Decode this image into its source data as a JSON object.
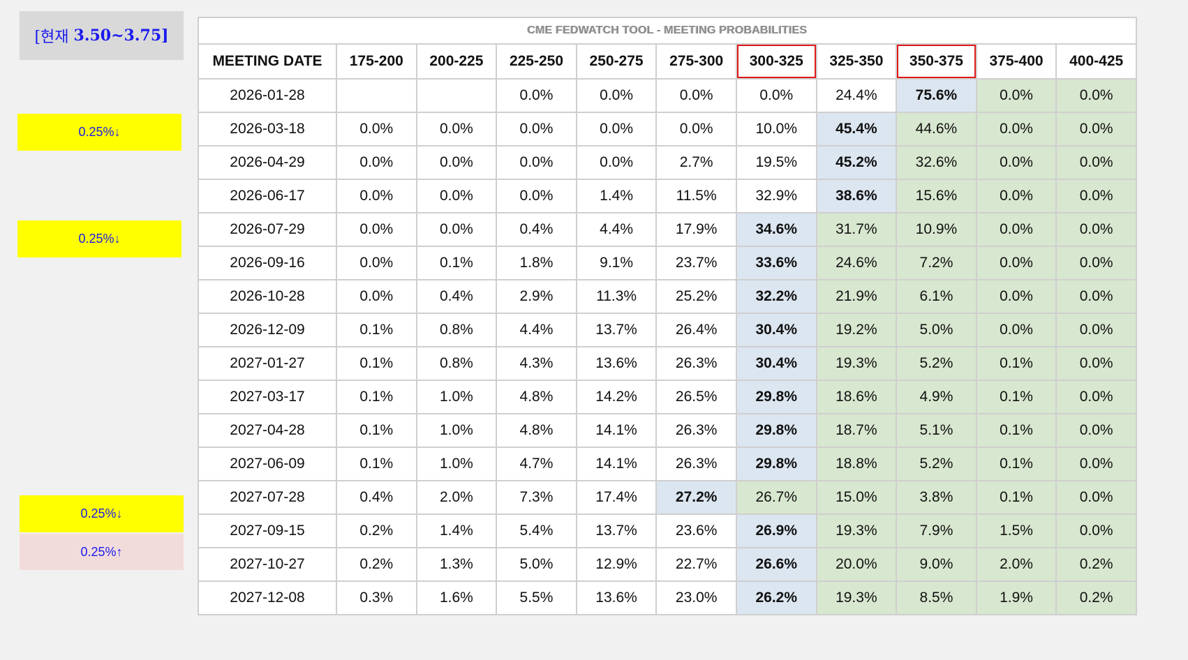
{
  "annotations": {
    "current_prefix": "[현재",
    "current_range": "3.50~3.75]",
    "labels": [
      "0.25%↓",
      "0.25%↓",
      "0.25%↓",
      "0.25%↑"
    ],
    "colors": {
      "highlight_yellow": "#ffff00",
      "highlight_pink": "#f2dcdb",
      "text_blue": "#1a1aee"
    }
  },
  "table": {
    "title": "CME FEDWATCH TOOL - MEETING PROBABILITIES",
    "headers": [
      "MEETING DATE",
      "175-200",
      "200-225",
      "225-250",
      "250-275",
      "275-300",
      "300-325",
      "325-350",
      "350-375",
      "375-400",
      "400-425"
    ],
    "boxed_headers": [
      "300-325",
      "350-375"
    ],
    "colors": {
      "max_cell_blue": "#dce6f1",
      "higher_green": "#d8e7cf",
      "box_red": "#e01818"
    },
    "rows": [
      {
        "date": "2026-01-28",
        "values": [
          "",
          "",
          "0.0%",
          "0.0%",
          "0.0%",
          "0.0%",
          "24.4%",
          "75.6%",
          "0.0%",
          "0.0%"
        ],
        "max_index": 7
      },
      {
        "date": "2026-03-18",
        "values": [
          "0.0%",
          "0.0%",
          "0.0%",
          "0.0%",
          "0.0%",
          "10.0%",
          "45.4%",
          "44.6%",
          "0.0%",
          "0.0%"
        ],
        "max_index": 6
      },
      {
        "date": "2026-04-29",
        "values": [
          "0.0%",
          "0.0%",
          "0.0%",
          "0.0%",
          "2.7%",
          "19.5%",
          "45.2%",
          "32.6%",
          "0.0%",
          "0.0%"
        ],
        "max_index": 6
      },
      {
        "date": "2026-06-17",
        "values": [
          "0.0%",
          "0.0%",
          "0.0%",
          "1.4%",
          "11.5%",
          "32.9%",
          "38.6%",
          "15.6%",
          "0.0%",
          "0.0%"
        ],
        "max_index": 6
      },
      {
        "date": "2026-07-29",
        "values": [
          "0.0%",
          "0.0%",
          "0.4%",
          "4.4%",
          "17.9%",
          "34.6%",
          "31.7%",
          "10.9%",
          "0.0%",
          "0.0%"
        ],
        "max_index": 5
      },
      {
        "date": "2026-09-16",
        "values": [
          "0.0%",
          "0.1%",
          "1.8%",
          "9.1%",
          "23.7%",
          "33.6%",
          "24.6%",
          "7.2%",
          "0.0%",
          "0.0%"
        ],
        "max_index": 5
      },
      {
        "date": "2026-10-28",
        "values": [
          "0.0%",
          "0.4%",
          "2.9%",
          "11.3%",
          "25.2%",
          "32.2%",
          "21.9%",
          "6.1%",
          "0.0%",
          "0.0%"
        ],
        "max_index": 5
      },
      {
        "date": "2026-12-09",
        "values": [
          "0.1%",
          "0.8%",
          "4.4%",
          "13.7%",
          "26.4%",
          "30.4%",
          "19.2%",
          "5.0%",
          "0.0%",
          "0.0%"
        ],
        "max_index": 5
      },
      {
        "date": "2027-01-27",
        "values": [
          "0.1%",
          "0.8%",
          "4.3%",
          "13.6%",
          "26.3%",
          "30.4%",
          "19.3%",
          "5.2%",
          "0.1%",
          "0.0%"
        ],
        "max_index": 5
      },
      {
        "date": "2027-03-17",
        "values": [
          "0.1%",
          "1.0%",
          "4.8%",
          "14.2%",
          "26.5%",
          "29.8%",
          "18.6%",
          "4.9%",
          "0.1%",
          "0.0%"
        ],
        "max_index": 5
      },
      {
        "date": "2027-04-28",
        "values": [
          "0.1%",
          "1.0%",
          "4.8%",
          "14.1%",
          "26.3%",
          "29.8%",
          "18.7%",
          "5.1%",
          "0.1%",
          "0.0%"
        ],
        "max_index": 5
      },
      {
        "date": "2027-06-09",
        "values": [
          "0.1%",
          "1.0%",
          "4.7%",
          "14.1%",
          "26.3%",
          "29.8%",
          "18.8%",
          "5.2%",
          "0.1%",
          "0.0%"
        ],
        "max_index": 5
      },
      {
        "date": "2027-07-28",
        "values": [
          "0.4%",
          "2.0%",
          "7.3%",
          "17.4%",
          "27.2%",
          "26.7%",
          "15.0%",
          "3.8%",
          "0.1%",
          "0.0%"
        ],
        "max_index": 4
      },
      {
        "date": "2027-09-15",
        "values": [
          "0.2%",
          "1.4%",
          "5.4%",
          "13.7%",
          "23.6%",
          "26.9%",
          "19.3%",
          "7.9%",
          "1.5%",
          "0.0%"
        ],
        "max_index": 5
      },
      {
        "date": "2027-10-27",
        "values": [
          "0.2%",
          "1.3%",
          "5.0%",
          "12.9%",
          "22.7%",
          "26.6%",
          "20.0%",
          "9.0%",
          "2.0%",
          "0.2%"
        ],
        "max_index": 5
      },
      {
        "date": "2027-12-08",
        "values": [
          "0.3%",
          "1.6%",
          "5.5%",
          "13.6%",
          "23.0%",
          "26.2%",
          "19.3%",
          "8.5%",
          "1.9%",
          "0.2%"
        ],
        "max_index": 5
      }
    ]
  }
}
